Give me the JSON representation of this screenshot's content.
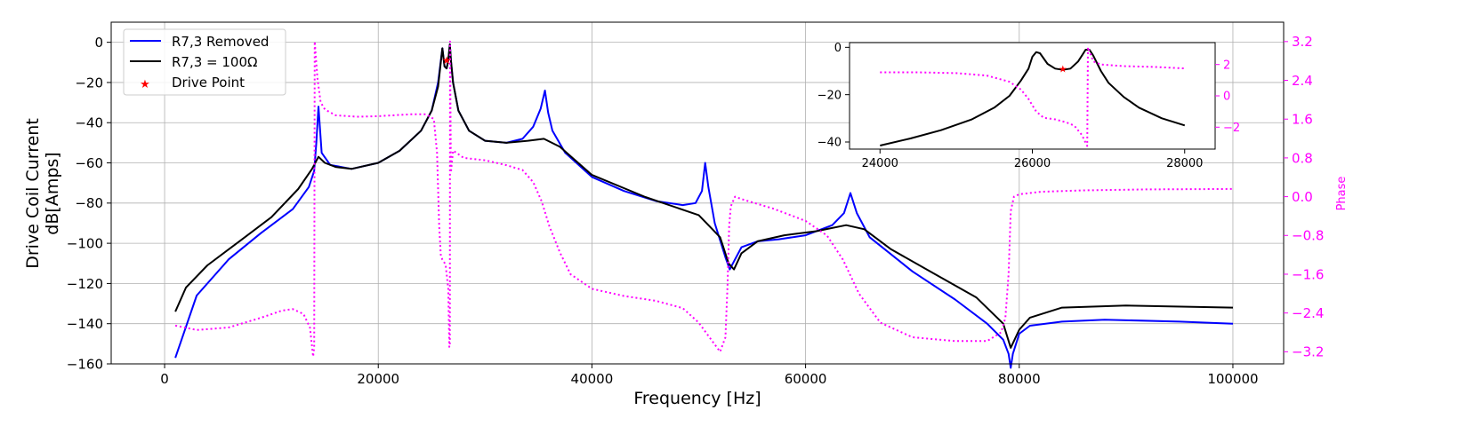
{
  "chart_data": [
    {
      "type": "line",
      "xlabel": "Frequency [Hz]",
      "ylabel_lines": [
        "Drive Coil Current",
        "dB[Amps]"
      ],
      "y2label": "Phase",
      "xlim": [
        -5000,
        104750
      ],
      "ylim": [
        -160,
        10
      ],
      "y2lim": [
        -3.45,
        3.6
      ],
      "xticks": [
        0,
        20000,
        40000,
        60000,
        80000,
        100000
      ],
      "yticks": [
        0,
        -20,
        -40,
        -60,
        -80,
        -100,
        -120,
        -140,
        -160
      ],
      "y2ticks": [
        "3.2",
        "2.4",
        "1.6",
        "0.8",
        "0.0",
        "-0.8",
        "-1.6",
        "-2.4",
        "-3.2"
      ],
      "grid": true,
      "legend_position": "upper-left",
      "colors": {
        "removed": "#0000ff",
        "r100": "#000000",
        "phase": "#ff00ff",
        "drive": "#ff0000"
      },
      "series": [
        {
          "name": "R7,3 Removed",
          "axis": "left",
          "x": [
            1000,
            3000,
            6000,
            9000,
            12000,
            13500,
            14000,
            14200,
            14400,
            14700,
            15500,
            17500,
            20000,
            22000,
            24000,
            25000,
            25600,
            26000,
            26200,
            26400,
            26550,
            26700,
            26800,
            27000,
            27500,
            28500,
            30000,
            32000,
            33500,
            34500,
            35200,
            35600,
            35900,
            36300,
            37500,
            40000,
            43000,
            46000,
            48500,
            49700,
            50300,
            50600,
            50900,
            51500,
            52500,
            52900,
            53300,
            54000,
            55500,
            57500,
            60000,
            62500,
            63600,
            64200,
            64800,
            66000,
            70000,
            74000,
            77000,
            78500,
            79000,
            79200,
            79400,
            80000,
            81000,
            84000,
            88000,
            95000,
            100000
          ],
          "y": [
            -157,
            -126,
            -108,
            -95,
            -83,
            -72,
            -64,
            -50,
            -32,
            -55,
            -61,
            -63,
            -60,
            -54,
            -44,
            -34,
            -20,
            -3,
            -12,
            -13,
            -9,
            -1,
            -9,
            -20,
            -34,
            -44,
            -49,
            -50,
            -48,
            -42,
            -33,
            -24,
            -35,
            -44,
            -55,
            -67,
            -74,
            -79,
            -81,
            -80,
            -74,
            -60,
            -72,
            -90,
            -107,
            -113,
            -109,
            -102,
            -99,
            -98,
            -96,
            -91,
            -85,
            -75,
            -85,
            -97,
            -114,
            -128,
            -140,
            -148,
            -155,
            -162,
            -155,
            -145,
            -141,
            -139,
            -138,
            -139,
            -140
          ]
        },
        {
          "name": "R7,3 = 100Ω",
          "axis": "left",
          "x": [
            1000,
            2000,
            4000,
            7000,
            10000,
            12500,
            13800,
            14400,
            15000,
            16000,
            17500,
            20000,
            22000,
            24000,
            25000,
            25600,
            26000,
            26200,
            26400,
            26550,
            26700,
            26800,
            27000,
            27500,
            28500,
            30000,
            32000,
            34000,
            35500,
            37000,
            40000,
            45000,
            50000,
            52000,
            52800,
            53300,
            54000,
            55500,
            58000,
            61000,
            63800,
            65500,
            68000,
            72000,
            76000,
            78500,
            79200,
            80000,
            81000,
            84000,
            90000,
            100000
          ],
          "y": [
            -134,
            -122,
            -111,
            -99,
            -87,
            -73,
            -63,
            -57,
            -60,
            -62,
            -63,
            -60,
            -54,
            -44,
            -34,
            -22,
            -3,
            -12,
            -13,
            -9,
            -1,
            -9,
            -20,
            -34,
            -44,
            -49,
            -50,
            -49,
            -48,
            -52,
            -66,
            -77,
            -86,
            -97,
            -110,
            -113,
            -105,
            -99,
            -96,
            -94,
            -91,
            -93,
            -103,
            -115,
            -127,
            -140,
            -152,
            -143,
            -137,
            -132,
            -131,
            -132
          ]
        },
        {
          "name": "Phase",
          "axis": "right",
          "x": [
            1000,
            3000,
            6000,
            9000,
            11000,
            12000,
            13000,
            13600,
            13900,
            14000,
            14050,
            14150,
            14300,
            14600,
            15000,
            16000,
            18000,
            20000,
            23000,
            24500,
            25200,
            25500,
            25700,
            25850,
            26000,
            26300,
            26550,
            26650,
            26700,
            26720,
            26800,
            27000,
            28000,
            30000,
            32000,
            33500,
            34500,
            35300,
            36000,
            37000,
            38000,
            40000,
            43000,
            46000,
            48500,
            50000,
            51000,
            52000,
            52500,
            52700,
            52850,
            53000,
            53400,
            54000,
            57000,
            60000,
            62000,
            63500,
            65000,
            67000,
            70000,
            74000,
            77000,
            78300,
            78700,
            79000,
            79200,
            79500,
            80000,
            82000,
            86000,
            92000,
            100000
          ],
          "y": [
            -2.66,
            -2.75,
            -2.7,
            -2.5,
            -2.35,
            -2.32,
            -2.42,
            -2.7,
            -3.3,
            -3.1,
            3.2,
            2.9,
            2.45,
            1.95,
            1.8,
            1.68,
            1.65,
            1.66,
            1.7,
            1.7,
            1.6,
            0.9,
            -0.6,
            -1.2,
            -1.3,
            -1.4,
            -1.9,
            -3.1,
            -3.1,
            3.2,
            0.5,
            0.95,
            0.8,
            0.75,
            0.65,
            0.55,
            0.3,
            -0.1,
            -0.6,
            -1.15,
            -1.6,
            -1.9,
            -2.05,
            -2.15,
            -2.3,
            -2.6,
            -2.9,
            -3.2,
            -2.9,
            -1.8,
            -0.6,
            -0.2,
            0.0,
            -0.05,
            -0.25,
            -0.5,
            -0.8,
            -1.3,
            -2.0,
            -2.6,
            -2.9,
            -2.98,
            -2.98,
            -2.8,
            -2.5,
            -1.6,
            -0.3,
            0.0,
            0.05,
            0.1,
            0.13,
            0.15,
            0.16
          ]
        },
        {
          "name": "Drive Point",
          "axis": "left",
          "marker": "star",
          "x": [
            26400
          ],
          "y": [
            -9
          ]
        }
      ]
    },
    {
      "type": "line",
      "role": "inset",
      "xlim": [
        23600,
        28400
      ],
      "ylim": [
        -43,
        2
      ],
      "y2lim": [
        -3.4,
        3.4
      ],
      "xticks": [
        24000,
        26000,
        28000
      ],
      "yticks": [
        0,
        -20,
        -40
      ],
      "y2ticks": [
        "2",
        "0",
        "-2"
      ],
      "grid": false,
      "series": [
        {
          "name": "R7,3 = 100Ω",
          "axis": "left",
          "x": [
            24000,
            24400,
            24800,
            25200,
            25500,
            25700,
            25850,
            25950,
            26000,
            26050,
            26100,
            26200,
            26300,
            26400,
            26500,
            26600,
            26650,
            26700,
            26750,
            26800,
            26900,
            27000,
            27200,
            27400,
            27700,
            28000
          ],
          "y": [
            -41.5,
            -38.5,
            -35,
            -30.5,
            -25.5,
            -20.5,
            -14,
            -9,
            -4,
            -2,
            -2.5,
            -7,
            -9,
            -9.5,
            -9,
            -6,
            -3.5,
            -1,
            -1,
            -3.5,
            -10,
            -15,
            -21,
            -25.5,
            -30,
            -33
          ]
        },
        {
          "name": "Phase",
          "axis": "right",
          "x": [
            24000,
            24500,
            25000,
            25400,
            25700,
            25850,
            25950,
            26000,
            26050,
            26150,
            26300,
            26450,
            26550,
            26650,
            26700,
            26720,
            26730,
            26800,
            26900,
            27200,
            27600,
            28000
          ],
          "y": [
            1.5,
            1.5,
            1.45,
            1.3,
            0.9,
            0.4,
            -0.2,
            -0.6,
            -1.0,
            -1.4,
            -1.5,
            -1.7,
            -1.9,
            -2.5,
            -3.0,
            -3.2,
            3.1,
            2.2,
            2.0,
            1.9,
            1.85,
            1.75
          ]
        },
        {
          "name": "Drive Point",
          "axis": "left",
          "marker": "star",
          "x": [
            26400
          ],
          "y": [
            -9
          ]
        }
      ]
    }
  ]
}
